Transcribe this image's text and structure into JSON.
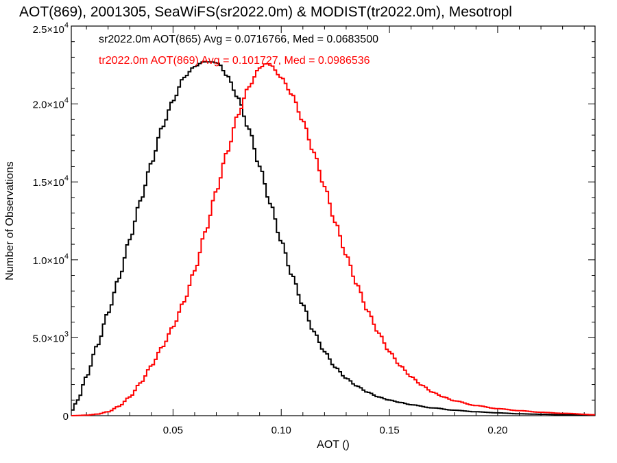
{
  "chart_data": {
    "type": "line",
    "title": "AOT(869), 2001305, SeaWiFS(sr2022.0m) & MODIST(tr2022.0m), Mesotropl",
    "xlabel": "AOT ()",
    "ylabel": "Number of Observations",
    "xlim": [
      0.003,
      0.245
    ],
    "ylim": [
      0,
      25000
    ],
    "x_ticks": [
      {
        "value": 0.05,
        "label": "0.05"
      },
      {
        "value": 0.1,
        "label": "0.10"
      },
      {
        "value": 0.15,
        "label": "0.15"
      },
      {
        "value": 0.2,
        "label": "0.20"
      }
    ],
    "y_ticks": [
      {
        "value": 0,
        "label": "0",
        "exp": ""
      },
      {
        "value": 5000,
        "label": "5.0×10",
        "exp": "3"
      },
      {
        "value": 10000,
        "label": "1.0×10",
        "exp": "4"
      },
      {
        "value": 15000,
        "label": "1.5×10",
        "exp": "4"
      },
      {
        "value": 20000,
        "label": "2.0×10",
        "exp": "4"
      },
      {
        "value": 25000,
        "label": "2.5×10",
        "exp": "4"
      }
    ],
    "grid": false,
    "legend_position": "top-left",
    "series": [
      {
        "legend": "sr2022.0m AOT(865) Avg = 0.0716766, Med = 0.0683500",
        "color": "#000000",
        "x": [
          0.003,
          0.006,
          0.01,
          0.015,
          0.02,
          0.025,
          0.03,
          0.035,
          0.04,
          0.045,
          0.05,
          0.055,
          0.06,
          0.064,
          0.068,
          0.071,
          0.075,
          0.08,
          0.085,
          0.09,
          0.095,
          0.1,
          0.105,
          0.11,
          0.115,
          0.12,
          0.125,
          0.13,
          0.135,
          0.14,
          0.145,
          0.15,
          0.155,
          0.16,
          0.17,
          0.18,
          0.19,
          0.2,
          0.21,
          0.22,
          0.23,
          0.245
        ],
        "y": [
          300,
          1000,
          2500,
          4500,
          6600,
          8800,
          11300,
          13800,
          16200,
          18500,
          20200,
          21700,
          22400,
          22700,
          22700,
          22600,
          21800,
          20400,
          18400,
          16000,
          13600,
          11200,
          9000,
          7100,
          5400,
          4100,
          3100,
          2400,
          1900,
          1500,
          1200,
          1000,
          850,
          700,
          500,
          350,
          250,
          180,
          120,
          90,
          60,
          30
        ]
      },
      {
        "legend": "tr2022.0m AOT(869) Avg = 0.101727, Med = 0.0986536",
        "color": "#ff0000",
        "x": [
          0.003,
          0.01,
          0.015,
          0.02,
          0.025,
          0.03,
          0.035,
          0.04,
          0.045,
          0.05,
          0.055,
          0.06,
          0.065,
          0.07,
          0.075,
          0.08,
          0.085,
          0.09,
          0.093,
          0.095,
          0.1,
          0.105,
          0.11,
          0.115,
          0.12,
          0.125,
          0.13,
          0.135,
          0.14,
          0.145,
          0.15,
          0.155,
          0.16,
          0.165,
          0.17,
          0.175,
          0.18,
          0.19,
          0.2,
          0.21,
          0.22,
          0.23,
          0.245
        ],
        "y": [
          0,
          30,
          100,
          250,
          600,
          1200,
          2100,
          3200,
          4400,
          5700,
          7300,
          9300,
          11800,
          14400,
          16900,
          19300,
          21100,
          22300,
          22600,
          22500,
          21700,
          20600,
          18900,
          16900,
          14700,
          12400,
          10300,
          8400,
          6700,
          5300,
          4100,
          3200,
          2500,
          1950,
          1500,
          1200,
          950,
          650,
          450,
          320,
          220,
          150,
          60
        ]
      }
    ]
  }
}
